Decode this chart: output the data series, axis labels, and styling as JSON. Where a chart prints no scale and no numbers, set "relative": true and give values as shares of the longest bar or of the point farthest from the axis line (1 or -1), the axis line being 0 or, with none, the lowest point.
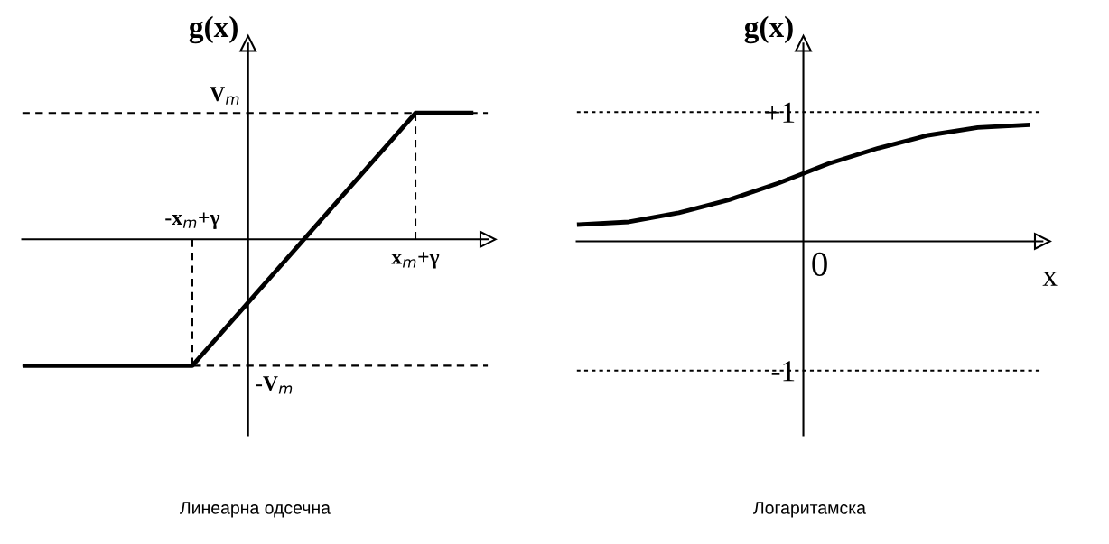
{
  "chart_data": [
    {
      "type": "line",
      "title": "Линеарна одсечна",
      "ylabel": "g(x)",
      "relative": true,
      "categories": [
        null,
        null,
        null,
        null,
        null,
        null,
        null,
        null,
        null
      ],
      "series": [
        {
          "color": "#000000",
          "values": [
            -1,
            -1,
            -1,
            -1,
            -0.5,
            0,
            0.5,
            1,
            1
          ]
        }
      ],
      "annotations": [
        {
          "text": "V$_{m}$",
          "y": 1
        },
        {
          "text": "-V$_{m}$",
          "y": -1
        },
        "-x$_{m}$+γ",
        "x$_{m}$+γ"
      ],
      "ref_lines": [
        {
          "axis": "y",
          "value": 1,
          "line_style": "dashed",
          "color": "#000000"
        },
        {
          "axis": "y",
          "value": -1,
          "line_style": "dashed",
          "color": "#000000"
        }
      ]
    },
    {
      "type": "line",
      "title": "Логаритамска",
      "xlabel": "x",
      "ylabel": "g(x)",
      "categories": [
        null,
        null,
        null,
        null,
        null,
        null,
        null,
        null,
        null,
        null
      ],
      "series": [
        {
          "color": "#000000",
          "values": [
            0.13,
            0.15,
            0.22,
            0.32,
            0.45,
            0.6,
            0.72,
            0.82,
            0.88,
            0.9
          ]
        }
      ],
      "ylim": [
        -1.5,
        1.53
      ],
      "yticks": [
        {
          "value": 1,
          "label": "+1"
        },
        {
          "value": -1,
          "label": "-1"
        }
      ],
      "annotations": [
        "0"
      ],
      "ref_lines": [
        {
          "axis": "y",
          "value": 1,
          "line_style": "dotted",
          "color": "#000000"
        },
        {
          "axis": "y",
          "value": -1,
          "line_style": "dotted",
          "color": "#000000"
        }
      ]
    }
  ]
}
